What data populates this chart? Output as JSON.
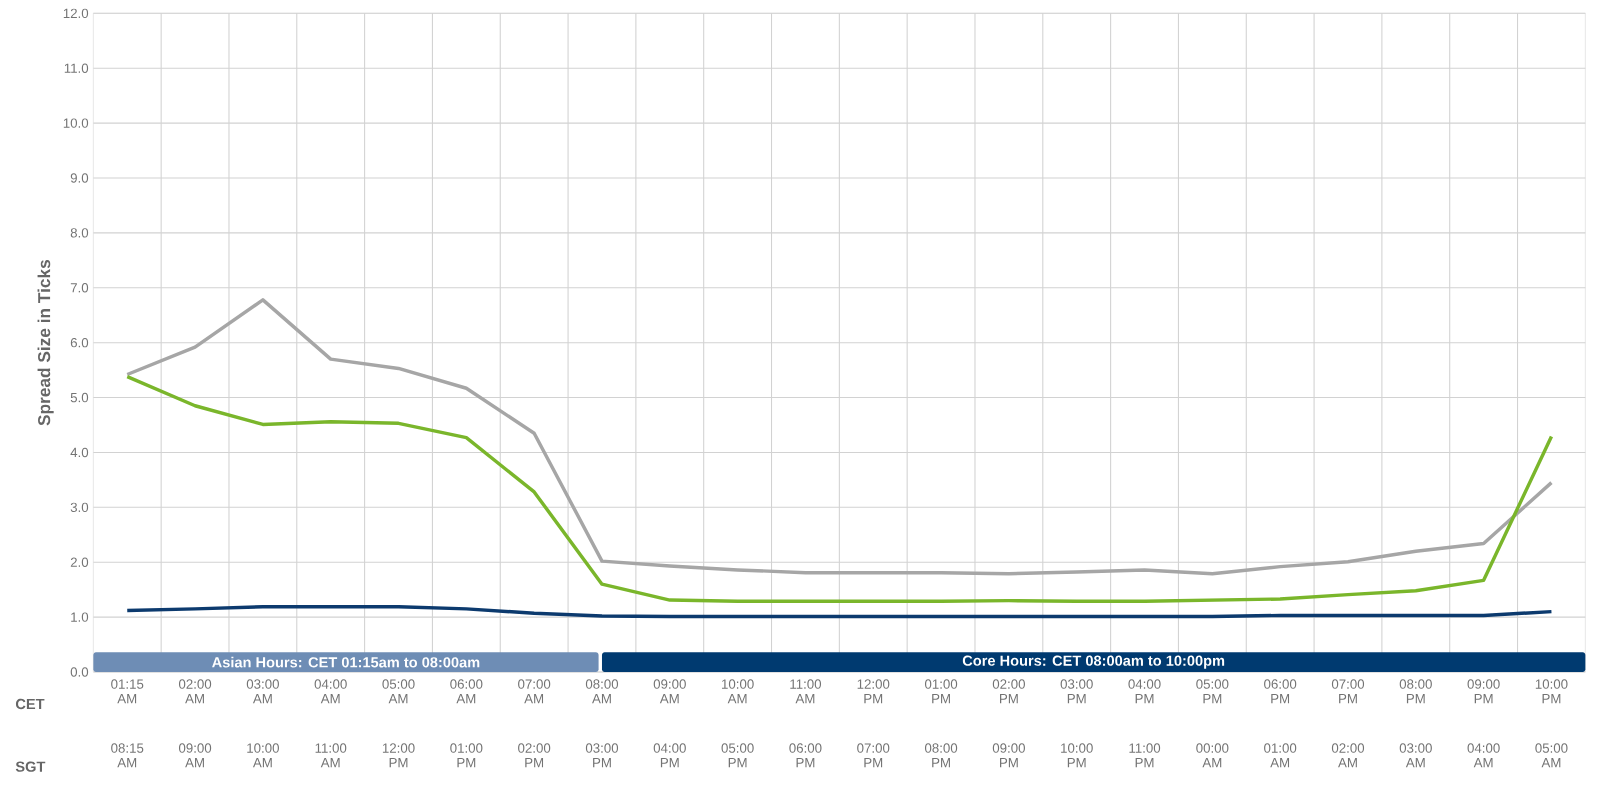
{
  "chart_data": {
    "type": "line",
    "ylabel": "Spread Size in Ticks",
    "categories": [
      "01:15 AM",
      "02:00 AM",
      "03:00 AM",
      "04:00 AM",
      "05:00 AM",
      "06:00 AM",
      "07:00 AM",
      "08:00 AM",
      "09:00 AM",
      "10:00 AM",
      "11:00 AM",
      "12:00 PM",
      "01:00 PM",
      "02:00 PM",
      "03:00 PM",
      "04:00 PM",
      "05:00 PM",
      "06:00 PM",
      "07:00 PM",
      "08:00 PM",
      "09:00 PM",
      "10:00 PM"
    ],
    "series": [
      {
        "color": "#a6a6a6",
        "values": [
          5.42,
          5.92,
          6.78,
          5.7,
          5.53,
          5.17,
          4.35,
          2.02,
          1.93,
          1.86,
          1.81,
          1.81,
          1.81,
          1.79,
          1.82,
          1.86,
          1.79,
          1.92,
          2.01,
          2.2,
          2.34,
          3.45
        ]
      },
      {
        "color": "#7ab62b",
        "values": [
          5.38,
          4.85,
          4.51,
          4.56,
          4.53,
          4.27,
          3.28,
          1.6,
          1.31,
          1.29,
          1.29,
          1.29,
          1.29,
          1.3,
          1.29,
          1.29,
          1.31,
          1.33,
          1.41,
          1.48,
          1.67,
          4.29
        ]
      },
      {
        "color": "#0c3a6e",
        "values": [
          1.12,
          1.15,
          1.19,
          1.19,
          1.19,
          1.15,
          1.07,
          1.02,
          1.01,
          1.01,
          1.01,
          1.01,
          1.01,
          1.01,
          1.01,
          1.01,
          1.01,
          1.03,
          1.03,
          1.03,
          1.03,
          1.1
        ]
      }
    ],
    "ylim": [
      0,
      12
    ],
    "yticks": [
      {
        "value": 0,
        "label": "0.0"
      },
      {
        "value": 1,
        "label": "1.0"
      },
      {
        "value": 2,
        "label": "2.0"
      },
      {
        "value": 3,
        "label": "3.0"
      },
      {
        "value": 4,
        "label": "4.0"
      },
      {
        "value": 5,
        "label": "5.0"
      },
      {
        "value": 6,
        "label": "6.0"
      },
      {
        "value": 7,
        "label": "7.0"
      },
      {
        "value": 8,
        "label": "8.0"
      },
      {
        "value": 9,
        "label": "9.0"
      },
      {
        "value": 10,
        "label": "10.0"
      },
      {
        "value": 11,
        "label": "11.0"
      },
      {
        "value": 12,
        "label": "12.0"
      }
    ],
    "grid": true,
    "marker": "none",
    "line_style": "solid",
    "annotations": [
      "CET",
      "SGT",
      "08:15 AM",
      "09:00 AM",
      "10:00 AM",
      "11:00 AM",
      "12:00 PM",
      "01:00 PM",
      "02:00 PM",
      "03:00 PM",
      "04:00 PM",
      "05:00 PM",
      "06:00 PM",
      "07:00 PM",
      "08:00 PM",
      "09:00 PM",
      "10:00 PM",
      "11:00 PM",
      "00:00 AM",
      "01:00 AM",
      "02:00 AM",
      "03:00 AM",
      "04:00 AM",
      "05:00 AM",
      "Asian Hours: CET 01:15am to 08:00am",
      "Core Hours: CET 08:00am to 10:00pm"
    ]
  }
}
